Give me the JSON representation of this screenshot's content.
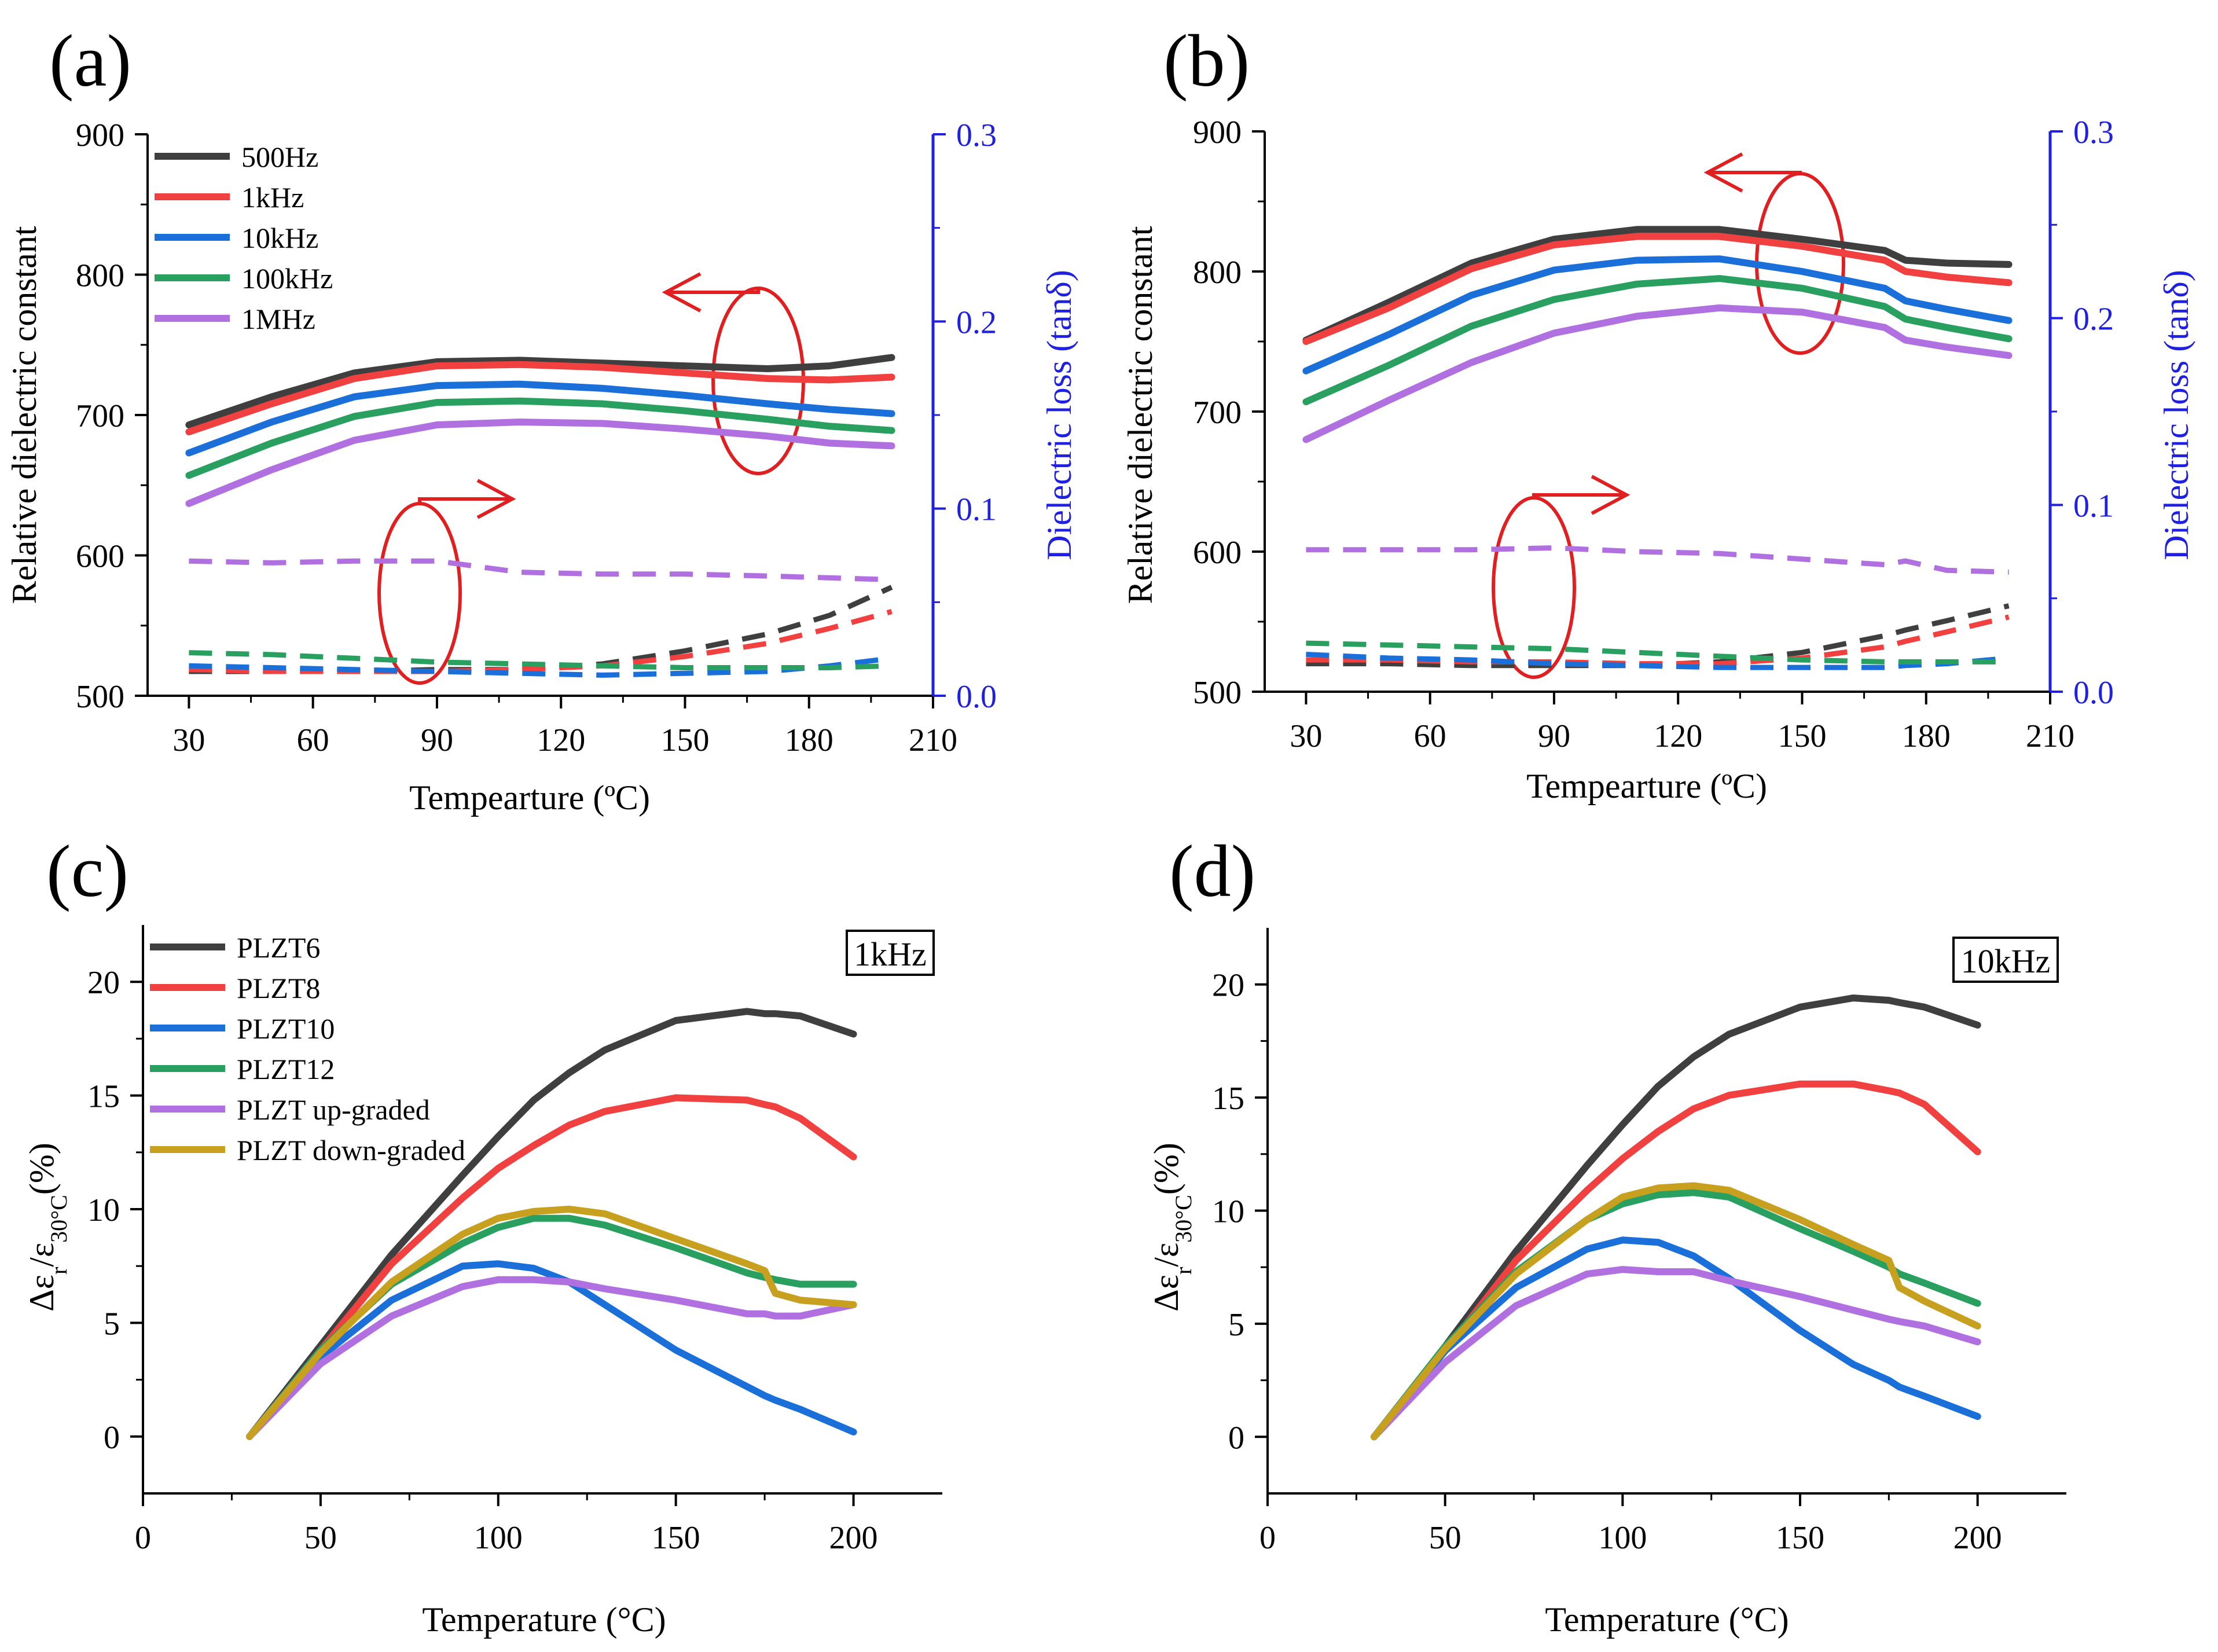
{
  "chart_data": [
    {
      "type": "line",
      "panel_label": "(a)",
      "xlabel": "Tempearture (ºC)",
      "ylabel": "Relative dielectric constant",
      "y2label": "Dielectric loss (tanδ)",
      "xlim": [
        20,
        210
      ],
      "ylim": [
        500,
        900
      ],
      "y2lim": [
        0,
        0.3
      ],
      "xticks": [
        30,
        60,
        90,
        120,
        150,
        180,
        210
      ],
      "yticks": [
        500,
        600,
        700,
        800,
        900
      ],
      "y2ticks": [
        0.0,
        0.1,
        0.2,
        0.3
      ],
      "ytick_labels": [
        "500",
        "600",
        "700",
        "800",
        "900"
      ],
      "xtick_labels": [
        "30",
        "60",
        "90",
        "120",
        "150",
        "180",
        "210"
      ],
      "y2tick_labels": [
        "0.0",
        "0.1",
        "0.2",
        "0.3"
      ],
      "legend_position": "top-left",
      "legend": [
        "500Hz",
        "1kHz",
        "10kHz",
        "100kHz",
        "1MHz"
      ],
      "x": [
        30,
        50,
        70,
        90,
        110,
        130,
        150,
        170,
        185,
        200
      ],
      "series": [
        {
          "name": "500Hz",
          "axis": "left",
          "style": "solid",
          "color": "#3f3f3f",
          "values": [
            693,
            713,
            730,
            738,
            739,
            737,
            735,
            733,
            735,
            741
          ]
        },
        {
          "name": "1kHz",
          "axis": "left",
          "style": "solid",
          "color": "#f04040",
          "values": [
            688,
            708,
            726,
            735,
            736,
            734,
            730,
            726,
            725,
            727
          ]
        },
        {
          "name": "10kHz",
          "axis": "left",
          "style": "solid",
          "color": "#1a6fd8",
          "values": [
            673,
            695,
            713,
            721,
            722,
            719,
            714,
            708,
            704,
            701
          ]
        },
        {
          "name": "100kHz",
          "axis": "left",
          "style": "solid",
          "color": "#2aa060",
          "values": [
            657,
            680,
            699,
            709,
            710,
            708,
            703,
            697,
            692,
            689
          ]
        },
        {
          "name": "1MHz",
          "axis": "left",
          "style": "solid",
          "color": "#b070e0",
          "values": [
            637,
            661,
            682,
            693,
            695,
            694,
            690,
            685,
            680,
            678
          ]
        },
        {
          "name": "500Hz loss",
          "axis": "right",
          "style": "dashed",
          "color": "#3f3f3f",
          "values": [
            0.013,
            0.013,
            0.013,
            0.014,
            0.014,
            0.017,
            0.024,
            0.033,
            0.043,
            0.058
          ]
        },
        {
          "name": "1kHz loss",
          "axis": "right",
          "style": "dashed",
          "color": "#f04040",
          "values": [
            0.014,
            0.013,
            0.013,
            0.013,
            0.014,
            0.016,
            0.021,
            0.028,
            0.036,
            0.045
          ]
        },
        {
          "name": "10kHz loss",
          "axis": "right",
          "style": "dashed",
          "color": "#1a6fd8",
          "values": [
            0.016,
            0.015,
            0.014,
            0.013,
            0.012,
            0.011,
            0.012,
            0.013,
            0.016,
            0.02
          ]
        },
        {
          "name": "100kHz loss",
          "axis": "right",
          "style": "dashed",
          "color": "#2aa060",
          "values": [
            0.023,
            0.022,
            0.02,
            0.018,
            0.017,
            0.016,
            0.015,
            0.015,
            0.015,
            0.016
          ]
        },
        {
          "name": "1MHz loss",
          "axis": "right",
          "style": "dashed",
          "color": "#b070e0",
          "values": [
            0.072,
            0.071,
            0.072,
            0.072,
            0.066,
            0.065,
            0.065,
            0.064,
            0.063,
            0.062
          ]
        }
      ],
      "annotations": [
        "red ellipse with arrow pointing left to dielectric constant axis",
        "red ellipse with arrow pointing right to dielectric loss axis"
      ]
    },
    {
      "type": "line",
      "panel_label": "(b)",
      "xlabel": "Tempearture (ºC)",
      "ylabel": "Relative dielectric constant",
      "y2label": "Dielectric loss (tanδ)",
      "xlim": [
        20,
        210
      ],
      "ylim": [
        500,
        900
      ],
      "y2lim": [
        0,
        0.3
      ],
      "xticks": [
        30,
        60,
        90,
        120,
        150,
        180,
        210
      ],
      "yticks": [
        500,
        600,
        700,
        800,
        900
      ],
      "y2ticks": [
        0.0,
        0.1,
        0.2,
        0.3
      ],
      "ytick_labels": [
        "500",
        "600",
        "700",
        "800",
        "900"
      ],
      "xtick_labels": [
        "30",
        "60",
        "90",
        "120",
        "150",
        "180",
        "210"
      ],
      "y2tick_labels": [
        "0.0",
        "0.1",
        "0.2",
        "0.3"
      ],
      "x": [
        30,
        50,
        70,
        90,
        110,
        130,
        150,
        170,
        175,
        185,
        200
      ],
      "series": [
        {
          "name": "500Hz",
          "axis": "left",
          "style": "solid",
          "color": "#3f3f3f",
          "values": [
            751,
            778,
            806,
            823,
            830,
            830,
            823,
            815,
            808,
            806,
            805
          ]
        },
        {
          "name": "1kHz",
          "axis": "left",
          "style": "solid",
          "color": "#f04040",
          "values": [
            750,
            774,
            802,
            819,
            825,
            825,
            818,
            808,
            800,
            796,
            792
          ]
        },
        {
          "name": "10kHz",
          "axis": "left",
          "style": "solid",
          "color": "#1a6fd8",
          "values": [
            729,
            755,
            783,
            801,
            808,
            809,
            800,
            788,
            779,
            773,
            765
          ]
        },
        {
          "name": "100kHz",
          "axis": "left",
          "style": "solid",
          "color": "#2aa060",
          "values": [
            707,
            733,
            761,
            780,
            791,
            795,
            788,
            775,
            766,
            760,
            752
          ]
        },
        {
          "name": "1MHz",
          "axis": "left",
          "style": "solid",
          "color": "#b070e0",
          "values": [
            680,
            708,
            735,
            756,
            768,
            774,
            771,
            760,
            751,
            746,
            740
          ]
        },
        {
          "name": "500Hz loss",
          "axis": "right",
          "style": "dashed",
          "color": "#3f3f3f",
          "values": [
            0.015,
            0.015,
            0.014,
            0.014,
            0.014,
            0.016,
            0.021,
            0.03,
            0.033,
            0.038,
            0.046
          ]
        },
        {
          "name": "1kHz loss",
          "axis": "right",
          "style": "dashed",
          "color": "#f04040",
          "values": [
            0.017,
            0.017,
            0.016,
            0.016,
            0.015,
            0.015,
            0.018,
            0.024,
            0.027,
            0.032,
            0.04
          ]
        },
        {
          "name": "10kHz loss",
          "axis": "right",
          "style": "dashed",
          "color": "#1a6fd8",
          "values": [
            0.02,
            0.018,
            0.017,
            0.015,
            0.014,
            0.013,
            0.013,
            0.013,
            0.014,
            0.015,
            0.018
          ]
        },
        {
          "name": "100kHz loss",
          "axis": "right",
          "style": "dashed",
          "color": "#2aa060",
          "values": [
            0.026,
            0.025,
            0.024,
            0.023,
            0.021,
            0.019,
            0.017,
            0.016,
            0.016,
            0.016,
            0.016
          ]
        },
        {
          "name": "1MHz loss",
          "axis": "right",
          "style": "dashed",
          "color": "#b070e0",
          "values": [
            0.076,
            0.076,
            0.076,
            0.077,
            0.075,
            0.074,
            0.071,
            0.068,
            0.07,
            0.065,
            0.064
          ]
        }
      ],
      "annotations": [
        "red ellipse with arrow pointing left to dielectric constant axis",
        "red ellipse with arrow pointing right to dielectric loss axis"
      ]
    },
    {
      "type": "line",
      "panel_label": "(c)",
      "inset_label": "1kHz",
      "xlabel": "Temperature (°C)",
      "ylabel": "Δεr/ε30°C(%)",
      "xlim": [
        0,
        225
      ],
      "ylim": [
        -2.5,
        22.5
      ],
      "xticks": [
        0,
        50,
        100,
        150,
        200
      ],
      "yticks": [
        0,
        5,
        10,
        15,
        20
      ],
      "xtick_labels": [
        "0",
        "50",
        "100",
        "150",
        "200"
      ],
      "ytick_labels": [
        "0",
        "5",
        "10",
        "15",
        "20"
      ],
      "legend_position": "top-left",
      "legend": [
        "PLZT6",
        "PLZT8",
        "PLZT10",
        "PLZT12",
        "PLZT up-graded",
        "PLZT down-graded"
      ],
      "x": [
        30,
        50,
        70,
        90,
        100,
        110,
        120,
        130,
        150,
        170,
        175,
        178,
        185,
        200
      ],
      "series": [
        {
          "name": "PLZT6",
          "color": "#3f3f3f",
          "values": [
            0,
            4.0,
            8.0,
            11.5,
            13.2,
            14.8,
            16.0,
            17.0,
            18.3,
            18.7,
            18.6,
            18.6,
            18.5,
            17.7
          ]
        },
        {
          "name": "PLZT8",
          "color": "#f04040",
          "values": [
            0,
            3.8,
            7.6,
            10.5,
            11.8,
            12.8,
            13.7,
            14.3,
            14.9,
            14.8,
            14.6,
            14.5,
            14.0,
            12.3
          ]
        },
        {
          "name": "PLZT10",
          "color": "#1a6fd8",
          "values": [
            0,
            3.5,
            6.0,
            7.5,
            7.6,
            7.4,
            6.8,
            5.8,
            3.8,
            2.2,
            1.8,
            1.6,
            1.2,
            0.2
          ]
        },
        {
          "name": "PLZT12",
          "color": "#2aa060",
          "values": [
            0,
            3.8,
            6.7,
            8.5,
            9.2,
            9.6,
            9.6,
            9.3,
            8.3,
            7.2,
            7.0,
            6.9,
            6.7,
            6.7
          ]
        },
        {
          "name": "PLZT up-graded",
          "color": "#b070e0",
          "values": [
            0,
            3.2,
            5.3,
            6.6,
            6.9,
            6.9,
            6.8,
            6.5,
            6.0,
            5.4,
            5.4,
            5.3,
            5.3,
            5.8
          ]
        },
        {
          "name": "PLZT down-graded",
          "color": "#c8a020",
          "values": [
            0,
            3.7,
            6.8,
            8.9,
            9.6,
            9.9,
            10.0,
            9.8,
            8.7,
            7.6,
            7.3,
            6.3,
            6.0,
            5.8
          ]
        }
      ]
    },
    {
      "type": "line",
      "panel_label": "(d)",
      "inset_label": "10kHz",
      "xlabel": "Temperature (°C)",
      "ylabel": "Δεr/ε30°C(%)",
      "xlim": [
        0,
        225
      ],
      "ylim": [
        -2.5,
        22.5
      ],
      "xticks": [
        0,
        50,
        100,
        150,
        200
      ],
      "yticks": [
        0,
        5,
        10,
        15,
        20
      ],
      "xtick_labels": [
        "0",
        "50",
        "100",
        "150",
        "200"
      ],
      "ytick_labels": [
        "0",
        "5",
        "10",
        "15",
        "20"
      ],
      "x": [
        30,
        50,
        70,
        90,
        100,
        110,
        120,
        130,
        150,
        165,
        175,
        178,
        185,
        200
      ],
      "series": [
        {
          "name": "PLZT6",
          "color": "#3f3f3f",
          "values": [
            0,
            4.0,
            8.2,
            12.0,
            13.8,
            15.5,
            16.8,
            17.8,
            19.0,
            19.4,
            19.3,
            19.2,
            19.0,
            18.2
          ]
        },
        {
          "name": "PLZT8",
          "color": "#f04040",
          "values": [
            0,
            3.8,
            7.8,
            10.9,
            12.3,
            13.5,
            14.5,
            15.1,
            15.6,
            15.6,
            15.3,
            15.2,
            14.7,
            12.6
          ]
        },
        {
          "name": "PLZT10",
          "color": "#1a6fd8",
          "values": [
            0,
            3.8,
            6.6,
            8.3,
            8.7,
            8.6,
            8.0,
            7.0,
            4.7,
            3.2,
            2.5,
            2.2,
            1.8,
            0.9
          ]
        },
        {
          "name": "PLZT12",
          "color": "#2aa060",
          "values": [
            0,
            4.0,
            7.3,
            9.6,
            10.3,
            10.7,
            10.8,
            10.6,
            9.2,
            8.2,
            7.5,
            7.2,
            6.8,
            5.9
          ]
        },
        {
          "name": "PLZT up-graded",
          "color": "#b070e0",
          "values": [
            0,
            3.3,
            5.8,
            7.2,
            7.4,
            7.3,
            7.3,
            6.9,
            6.2,
            5.6,
            5.2,
            5.1,
            4.9,
            4.2
          ]
        },
        {
          "name": "PLZT down-graded",
          "color": "#c8a020",
          "values": [
            0,
            3.9,
            7.2,
            9.6,
            10.6,
            11.0,
            11.1,
            10.9,
            9.6,
            8.5,
            7.8,
            6.6,
            6.0,
            4.9
          ]
        }
      ]
    }
  ]
}
